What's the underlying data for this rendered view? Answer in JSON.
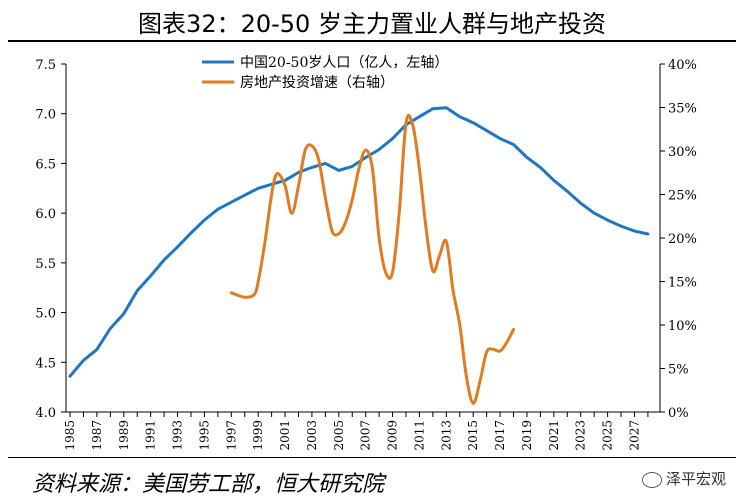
{
  "title": "图表32：20-50 岁主力置业人群与地产投资",
  "source": "资料来源：美国劳工部，恒大研究院",
  "watermark": "泽平宏观",
  "colors": {
    "population": "#1f77c4",
    "investment": "#e07b22"
  },
  "chart_data": {
    "type": "line",
    "x_categories": [
      "1985",
      "1986",
      "1987",
      "1988",
      "1989",
      "1990",
      "1991",
      "1992",
      "1993",
      "1994",
      "1995",
      "1996",
      "1997",
      "1998",
      "1999",
      "2000",
      "2001",
      "2002",
      "2003",
      "2004",
      "2005",
      "2006",
      "2007",
      "2008",
      "2009",
      "2010",
      "2011",
      "2012",
      "2013",
      "2014",
      "2015",
      "2016",
      "2017",
      "2018",
      "2019",
      "2020",
      "2021",
      "2022",
      "2023",
      "2024",
      "2025",
      "2026",
      "2027",
      "2028"
    ],
    "x_tick_labels": [
      "1985",
      "1987",
      "1989",
      "1991",
      "1993",
      "1995",
      "1997",
      "1999",
      "2001",
      "2003",
      "2005",
      "2007",
      "2009",
      "2011",
      "2013",
      "2015",
      "2017",
      "2019",
      "2021",
      "2023",
      "2025",
      "2027"
    ],
    "left_axis": {
      "ylim": [
        4.0,
        7.5
      ],
      "ticks": [
        "4.0",
        "4.5",
        "5.0",
        "5.5",
        "6.0",
        "6.5",
        "7.0",
        "7.5"
      ]
    },
    "right_axis": {
      "ylim": [
        0,
        40
      ],
      "ticks": [
        "0%",
        "5%",
        "10%",
        "15%",
        "20%",
        "25%",
        "30%",
        "35%",
        "40%"
      ]
    },
    "series": [
      {
        "name": "中国20-50岁人口（亿人，左轴）",
        "axis": "left",
        "x": [
          1985,
          1986,
          1987,
          1988,
          1989,
          1990,
          1991,
          1992,
          1993,
          1994,
          1995,
          1996,
          1997,
          1998,
          1999,
          2000,
          2001,
          2002,
          2003,
          2004,
          2005,
          2006,
          2007,
          2008,
          2009,
          2010,
          2011,
          2012,
          2013,
          2014,
          2015,
          2016,
          2017,
          2018,
          2019,
          2020,
          2021,
          2022,
          2023,
          2024,
          2025,
          2026,
          2027,
          2028
        ],
        "values": [
          4.36,
          4.52,
          4.63,
          4.84,
          4.99,
          5.22,
          5.37,
          5.53,
          5.66,
          5.8,
          5.93,
          6.04,
          6.11,
          6.18,
          6.25,
          6.29,
          6.33,
          6.41,
          6.46,
          6.5,
          6.43,
          6.47,
          6.56,
          6.64,
          6.75,
          6.89,
          6.97,
          7.05,
          7.06,
          6.97,
          6.91,
          6.83,
          6.75,
          6.69,
          6.56,
          6.46,
          6.33,
          6.22,
          6.1,
          6.0,
          5.93,
          5.87,
          5.82,
          5.79
        ]
      },
      {
        "name": "房地产投资增速（右轴）",
        "axis": "right",
        "x": [
          1997,
          1998,
          1998.7,
          1999,
          1999.5,
          2000,
          2000.4,
          2001,
          2001.5,
          2002,
          2002.5,
          2003,
          2003.5,
          2004,
          2004.5,
          2005,
          2005.5,
          2006,
          2006.5,
          2007,
          2007.5,
          2008,
          2008.5,
          2009,
          2009.5,
          2010,
          2010.5,
          2011,
          2011.5,
          2012,
          2012.5,
          2013,
          2013.5,
          2014,
          2014.5,
          2015,
          2015.5,
          2016,
          2016.5,
          2017,
          2017.5,
          2018
        ],
        "values": [
          13.7,
          13.2,
          13.5,
          15.0,
          19.5,
          25.0,
          27.4,
          26.0,
          22.8,
          26.0,
          30.1,
          30.6,
          29.0,
          24.6,
          20.8,
          20.5,
          21.8,
          24.4,
          28.0,
          30.1,
          28.0,
          20.0,
          16.0,
          16.1,
          23.0,
          33.2,
          33.0,
          27.9,
          21.0,
          16.2,
          18.0,
          19.6,
          14.0,
          10.0,
          4.0,
          1.0,
          3.5,
          6.9,
          7.2,
          7.0,
          8.0,
          9.5
        ]
      }
    ]
  }
}
